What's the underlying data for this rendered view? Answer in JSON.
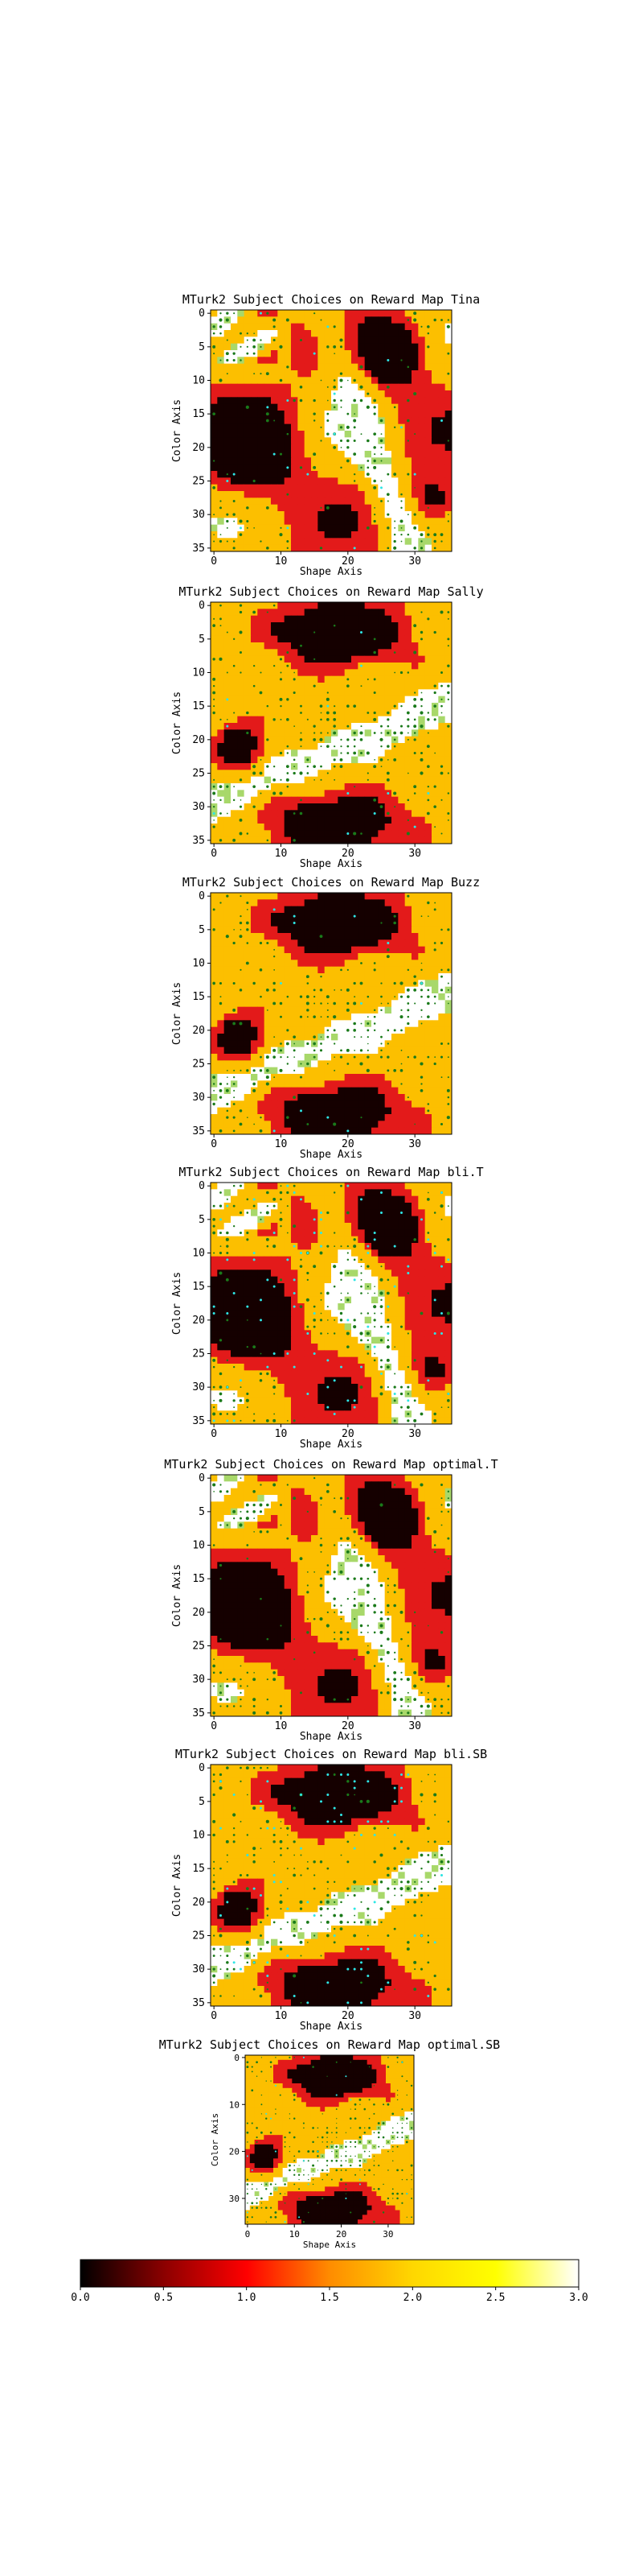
{
  "figure": {
    "background": "#ffffff"
  },
  "chart_data": [
    {
      "type": "heatmap",
      "title": "MTurk2 Subject Choices on Reward Map Tina",
      "xlabel": "Shape Axis",
      "ylabel": "Color Axis",
      "xticks": [
        0,
        10,
        20,
        30
      ],
      "yticks": [
        0,
        5,
        10,
        15,
        20,
        25,
        30,
        35
      ],
      "xlim": [
        0,
        35
      ],
      "ylim": [
        35,
        0
      ],
      "grid_size": 36,
      "value_range": [
        0,
        3
      ],
      "markers": [
        "green dots",
        "cyan dots"
      ]
    },
    {
      "type": "heatmap",
      "title": "MTurk2 Subject Choices on Reward Map Sally",
      "xlabel": "Shape Axis",
      "ylabel": "Color Axis",
      "xticks": [
        0,
        10,
        20,
        30
      ],
      "yticks": [
        0,
        5,
        10,
        15,
        20,
        25,
        30,
        35
      ],
      "xlim": [
        0,
        35
      ],
      "ylim": [
        35,
        0
      ],
      "grid_size": 36,
      "value_range": [
        0,
        3
      ],
      "markers": [
        "green dots",
        "cyan dots"
      ]
    },
    {
      "type": "heatmap",
      "title": "MTurk2 Subject Choices on Reward Map Buzz",
      "xlabel": "Shape Axis",
      "ylabel": "Color Axis",
      "xticks": [
        0,
        10,
        20,
        30
      ],
      "yticks": [
        0,
        5,
        10,
        15,
        20,
        25,
        30,
        35
      ],
      "xlim": [
        0,
        35
      ],
      "ylim": [
        35,
        0
      ],
      "grid_size": 36,
      "value_range": [
        0,
        3
      ],
      "markers": [
        "green dots",
        "cyan dots"
      ]
    },
    {
      "type": "heatmap",
      "title": "MTurk2 Subject Choices on Reward Map bli.T",
      "xlabel": "Shape Axis",
      "ylabel": "Color Axis",
      "xticks": [
        0,
        10,
        20,
        30
      ],
      "yticks": [
        0,
        5,
        10,
        15,
        20,
        25,
        30,
        35
      ],
      "xlim": [
        0,
        35
      ],
      "ylim": [
        35,
        0
      ],
      "grid_size": 36,
      "value_range": [
        0,
        3
      ],
      "markers": [
        "green dots",
        "cyan dots"
      ]
    },
    {
      "type": "heatmap",
      "title": "MTurk2 Subject Choices on Reward Map optimal.T",
      "xlabel": "Shape Axis",
      "ylabel": "Color Axis",
      "xticks": [
        0,
        10,
        20,
        30
      ],
      "yticks": [
        0,
        5,
        10,
        15,
        20,
        25,
        30,
        35
      ],
      "xlim": [
        0,
        35
      ],
      "ylim": [
        35,
        0
      ],
      "grid_size": 36,
      "value_range": [
        0,
        3
      ],
      "markers": [
        "green dots",
        "cyan dots"
      ]
    },
    {
      "type": "heatmap",
      "title": "MTurk2 Subject Choices on Reward Map bli.SB",
      "xlabel": "Shape Axis",
      "ylabel": "Color Axis",
      "xticks": [
        0,
        10,
        20,
        30
      ],
      "yticks": [
        0,
        5,
        10,
        15,
        20,
        25,
        30,
        35
      ],
      "xlim": [
        0,
        35
      ],
      "ylim": [
        35,
        0
      ],
      "grid_size": 36,
      "value_range": [
        0,
        3
      ],
      "markers": [
        "green dots",
        "cyan dots"
      ]
    },
    {
      "type": "heatmap",
      "title": "MTurk2 Subject Choices on Reward Map optimal.SB",
      "xlabel": "Shape Axis",
      "ylabel": "Color Axis",
      "xticks": [
        0,
        10,
        20,
        30
      ],
      "yticks": [
        0,
        10,
        20,
        30
      ],
      "xlim": [
        0,
        35
      ],
      "ylim": [
        35,
        0
      ],
      "grid_size": 36,
      "value_range": [
        0,
        3
      ],
      "markers": [
        "green dots",
        "cyan dots"
      ]
    }
  ],
  "colorbar": {
    "ticks": [
      "0.0",
      "0.5",
      "1.0",
      "1.5",
      "2.0",
      "2.5",
      "3.0"
    ],
    "range": [
      0,
      3
    ],
    "colormap": "hot",
    "stops": [
      "#000000",
      "#8b0000",
      "#ff0000",
      "#ff8c00",
      "#ffd700",
      "#ffff00",
      "#ffffff"
    ]
  },
  "palette": {
    "levels": [
      "#150000",
      "#e31a1a",
      "#fcbf00",
      "#ffffff"
    ],
    "light_green": "#a8d86a",
    "marker_green": "#1a7a1a",
    "marker_cyan": "#2ee6e6"
  }
}
